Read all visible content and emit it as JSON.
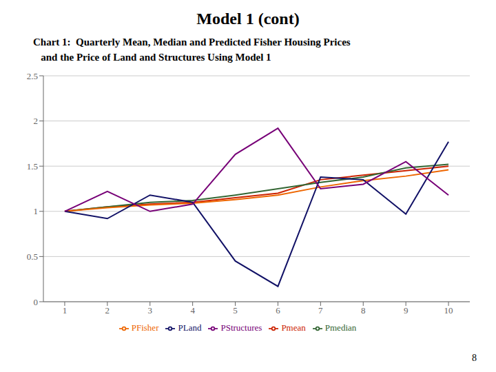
{
  "chart_data": {
    "type": "line",
    "title": "Model 1 (cont)",
    "subtitle": [
      "Chart 1:  Quarterly Mean, Median and Predicted Fisher Housing Prices",
      "   and the Price of Land and Structures Using Model 1"
    ],
    "annotations": [
      "8"
    ],
    "x": [
      1,
      2,
      3,
      4,
      5,
      6,
      7,
      8,
      9,
      10
    ],
    "series": [
      {
        "name": "Pmean",
        "color": "#cc2200",
        "values": [
          1.0,
          1.05,
          1.08,
          1.1,
          1.15,
          1.2,
          1.35,
          1.4,
          1.45,
          1.5
        ]
      },
      {
        "name": "Pmedian",
        "color": "#336633",
        "values": [
          1.0,
          1.05,
          1.1,
          1.12,
          1.18,
          1.25,
          1.32,
          1.38,
          1.48,
          1.52
        ]
      },
      {
        "name": "PFisher",
        "color": "#ee6600",
        "values": [
          1.0,
          1.04,
          1.07,
          1.09,
          1.13,
          1.18,
          1.27,
          1.34,
          1.39,
          1.46
        ]
      },
      {
        "name": "PLand",
        "color": "#111166",
        "values": [
          1.0,
          0.92,
          1.18,
          1.1,
          0.45,
          0.17,
          1.38,
          1.35,
          0.97,
          1.77
        ]
      },
      {
        "name": "PStructures",
        "color": "#770077",
        "values": [
          1.0,
          1.22,
          1.0,
          1.08,
          1.63,
          1.92,
          1.25,
          1.3,
          1.55,
          1.18
        ]
      }
    ],
    "xlim": [
      0.5,
      10.5
    ],
    "xticks": [
      1,
      2,
      3,
      4,
      5,
      6,
      7,
      8,
      9,
      10
    ],
    "ylim": [
      0,
      2.5
    ],
    "yticks": [
      0,
      0.5,
      1,
      1.5,
      2,
      2.5
    ],
    "grid": true,
    "legend": "bottom"
  }
}
